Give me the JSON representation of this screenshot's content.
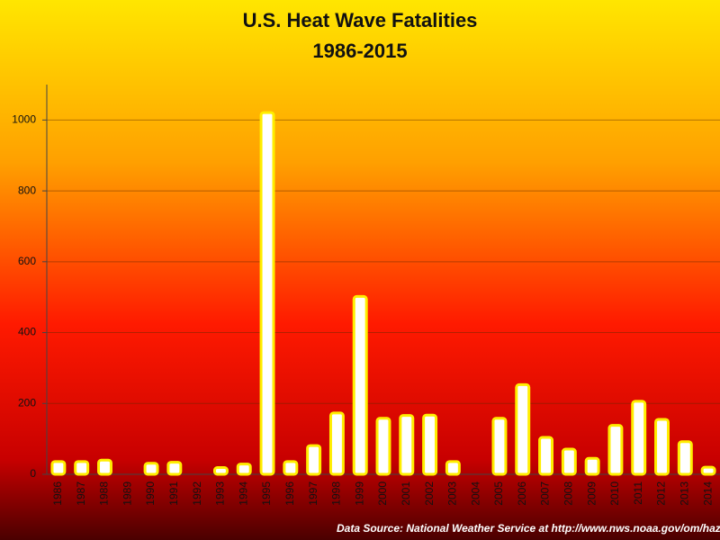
{
  "chart_data": {
    "type": "bar",
    "title": "U.S. Heat Wave Fatalities",
    "subtitle": "1986-2015",
    "source": "Data Source: National Weather Service at http://www.nws.noaa.gov/om/hazstats",
    "categories": [
      "1986",
      "1987",
      "1988",
      "1989",
      "1990",
      "1991",
      "1992",
      "1993",
      "1994",
      "1995",
      "1996",
      "1997",
      "1998",
      "1999",
      "2000",
      "2001",
      "2002",
      "2003",
      "2004",
      "2005",
      "2006",
      "2007",
      "2008",
      "2009",
      "2010",
      "2011",
      "2012",
      "2013",
      "2014"
    ],
    "values": [
      36,
      36,
      40,
      0,
      31,
      34,
      0,
      19,
      29,
      1021,
      36,
      81,
      173,
      502,
      158,
      166,
      167,
      36,
      0,
      158,
      253,
      104,
      71,
      45,
      138,
      206,
      155,
      92,
      20
    ],
    "color": "#ffffff",
    "border_color": "#ffee00",
    "ylim": [
      0,
      1100
    ],
    "yticks": [
      0,
      200,
      400,
      600,
      800,
      1000
    ],
    "grid": true
  }
}
